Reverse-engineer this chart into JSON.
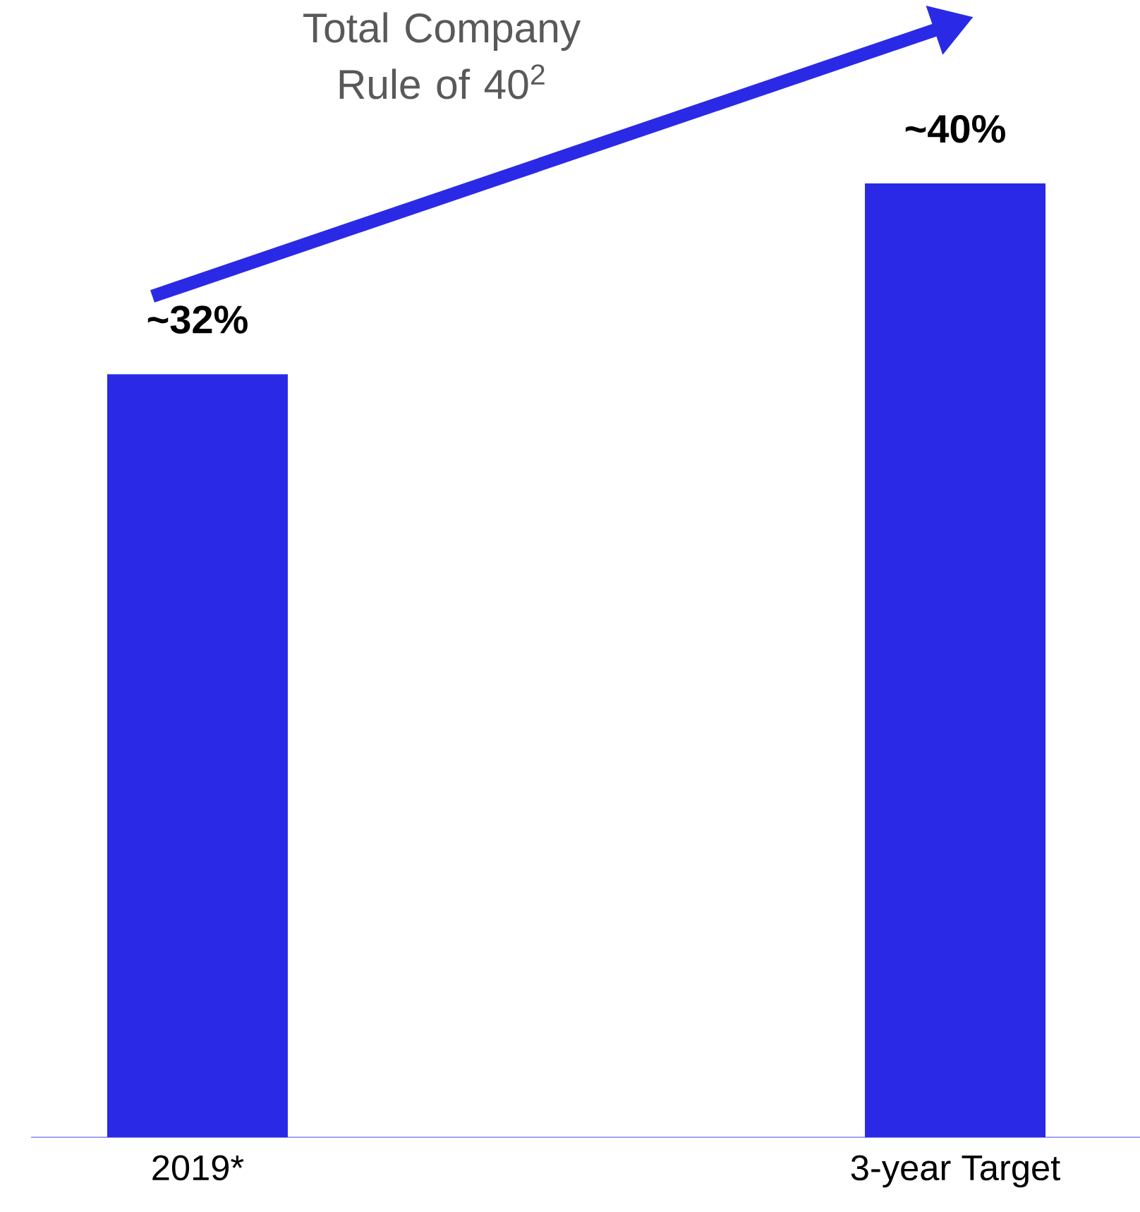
{
  "chart_data": {
    "type": "bar",
    "title": "Total Company Rule of 40$^{2}$",
    "categories": [
      "2019*",
      "3-year Target"
    ],
    "values": [
      32,
      40
    ],
    "value_labels": [
      "~32%",
      "~40%"
    ],
    "color": "#2a2ae6"
  }
}
